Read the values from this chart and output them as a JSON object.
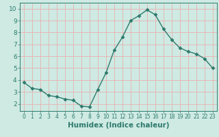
{
  "x": [
    0,
    1,
    2,
    3,
    4,
    5,
    6,
    7,
    8,
    9,
    10,
    11,
    12,
    13,
    14,
    15,
    16,
    17,
    18,
    19,
    20,
    21,
    22,
    23
  ],
  "y": [
    3.8,
    3.3,
    3.2,
    2.7,
    2.6,
    2.4,
    2.3,
    1.8,
    1.75,
    3.2,
    4.6,
    6.5,
    7.6,
    9.0,
    9.4,
    9.9,
    9.5,
    8.3,
    7.4,
    6.7,
    6.4,
    6.2,
    5.8,
    5.0
  ],
  "line_color": "#2d7a6c",
  "marker": "D",
  "marker_size": 2.5,
  "bg_color": "#ceeae3",
  "grid_color": "#e8b0b0",
  "axis_color": "#2d7a6c",
  "xlabel": "Humidex (Indice chaleur)",
  "xlim": [
    -0.5,
    23.5
  ],
  "ylim": [
    1.4,
    10.5
  ],
  "yticks": [
    2,
    3,
    4,
    5,
    6,
    7,
    8,
    9,
    10
  ],
  "xticks": [
    0,
    1,
    2,
    3,
    4,
    5,
    6,
    7,
    8,
    9,
    10,
    11,
    12,
    13,
    14,
    15,
    16,
    17,
    18,
    19,
    20,
    21,
    22,
    23
  ],
  "xlabel_fontsize": 7.5,
  "tick_fontsize": 6.5,
  "tick_color": "#2d7a6c"
}
